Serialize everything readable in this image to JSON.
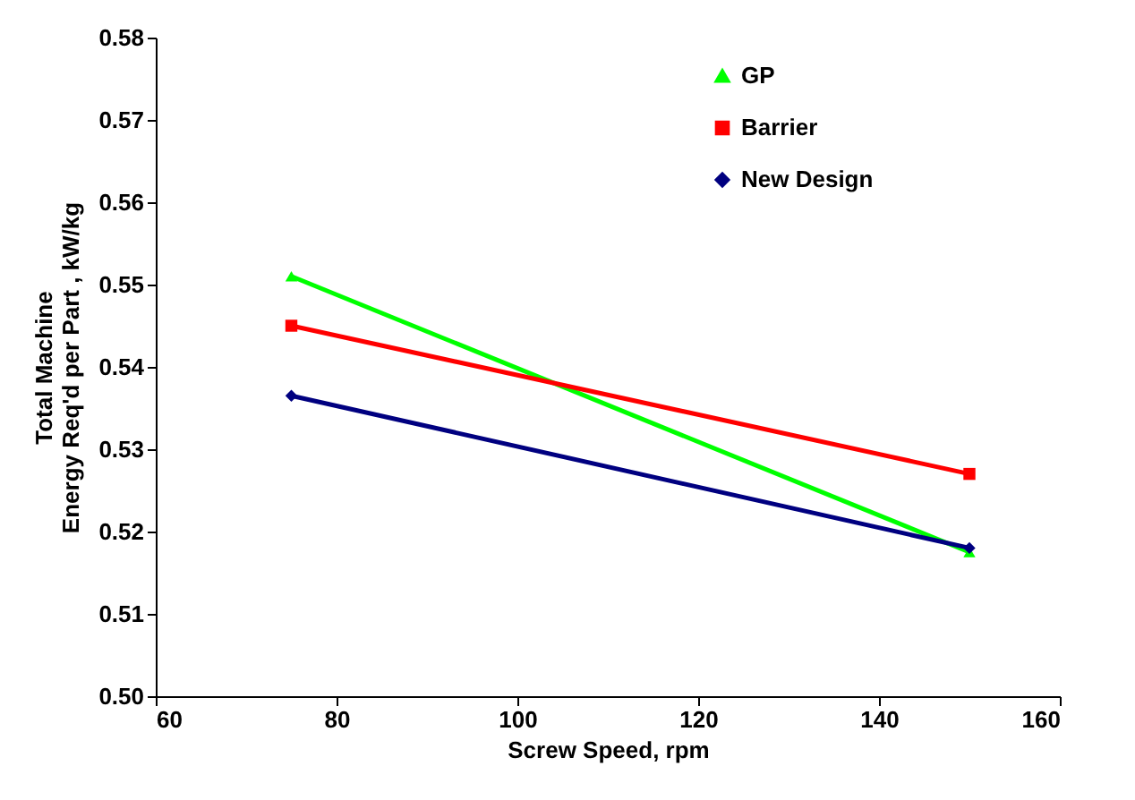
{
  "chart_data": {
    "type": "line",
    "xlabel": "Screw Speed, rpm",
    "ylabel": "Total Machine\nEnergy Req'd per Part , kW/kg",
    "x": [
      75,
      150
    ],
    "series": [
      {
        "name": "GP",
        "color": "#00ff00",
        "marker": "triangle",
        "values": [
          0.551,
          0.5175
        ]
      },
      {
        "name": "Barrier",
        "color": "#ff0000",
        "marker": "square",
        "values": [
          0.545,
          0.527
        ]
      },
      {
        "name": "New Design",
        "color": "#000080",
        "marker": "diamond",
        "values": [
          0.5365,
          0.518
        ]
      }
    ],
    "xlim": [
      60,
      160
    ],
    "xticks": [
      60,
      80,
      100,
      120,
      140,
      160
    ],
    "ylim": [
      0.5,
      0.58
    ],
    "yticks": [
      {
        "value": 0.5,
        "label": "0.50"
      },
      0.51,
      0.52,
      0.53,
      0.54,
      0.55,
      0.56,
      0.57,
      0.58
    ],
    "grid": false,
    "legend": "top right",
    "line_style": "solid"
  }
}
